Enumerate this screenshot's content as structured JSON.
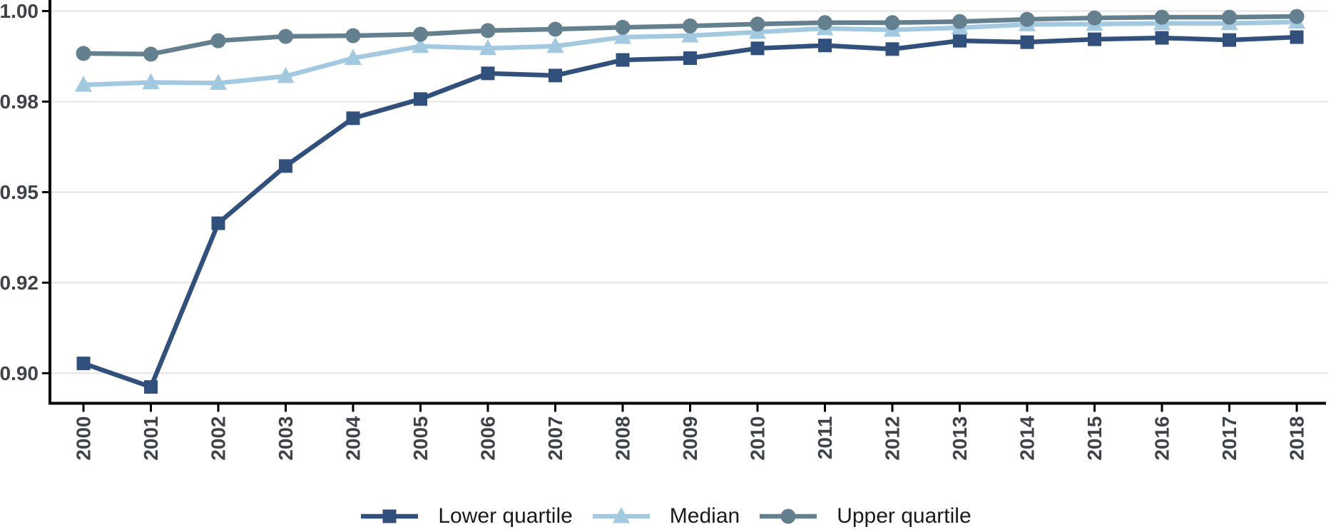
{
  "chart_data": {
    "type": "line",
    "title": "",
    "xlabel": "",
    "ylabel": "",
    "x": [
      2000,
      2001,
      2002,
      2003,
      2004,
      2005,
      2006,
      2007,
      2008,
      2009,
      2010,
      2011,
      2012,
      2013,
      2014,
      2015,
      2016,
      2017,
      2018
    ],
    "x_tick_labels": [
      "2000",
      "2001",
      "2002",
      "2003",
      "2004",
      "2005",
      "2006",
      "2007",
      "2008",
      "2009",
      "2010",
      "2011",
      "2012",
      "2013",
      "2014",
      "2015",
      "2016",
      "2017",
      "2018"
    ],
    "y_axis": {
      "tick_values": [
        0.9,
        0.925,
        0.95,
        0.975,
        1.0
      ],
      "tick_labels": [
        "0.90",
        "0.92",
        "0.95",
        "0.98",
        "1.00"
      ]
    },
    "ylim": [
      0.8918,
      1.0031
    ],
    "grid": "horizontal-only",
    "legend_position": "bottom-center",
    "series": [
      {
        "name": "Lower quartile",
        "marker": "square",
        "color": "#31517C",
        "values": [
          0.9027,
          0.8962,
          0.9414,
          0.9572,
          0.9704,
          0.9757,
          0.9828,
          0.9822,
          0.9865,
          0.987,
          0.9897,
          0.9905,
          0.9895,
          0.9918,
          0.9914,
          0.9922,
          0.9926,
          0.992,
          0.9928
        ]
      },
      {
        "name": "Median",
        "marker": "triangle",
        "color": "#A3C9E1",
        "values": [
          0.9796,
          0.9803,
          0.9801,
          0.982,
          0.987,
          0.9903,
          0.9897,
          0.9903,
          0.9928,
          0.9932,
          0.9942,
          0.9952,
          0.9948,
          0.9954,
          0.9963,
          0.9964,
          0.9966,
          0.9966,
          0.997
        ]
      },
      {
        "name": "Upper quartile",
        "marker": "circle",
        "color": "#64808E",
        "values": [
          0.9883,
          0.9881,
          0.9918,
          0.993,
          0.9932,
          0.9936,
          0.9946,
          0.995,
          0.9955,
          0.9959,
          0.9964,
          0.9968,
          0.9968,
          0.9971,
          0.9977,
          0.9981,
          0.9983,
          0.9983,
          0.9985
        ]
      }
    ],
    "colors": {
      "axis_text": "#3E4347",
      "legend_text": "#1A1A1A",
      "gridline": "#E4E4E4",
      "axis_line": "#000000",
      "background": "#FFFFFF"
    }
  }
}
